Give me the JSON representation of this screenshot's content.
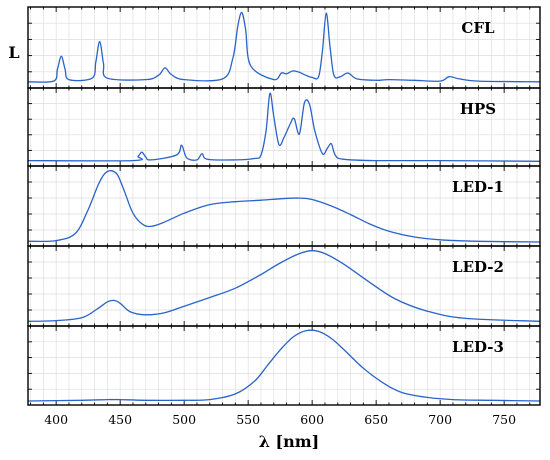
{
  "chart_data": {
    "type": "line",
    "xlabel": "λ [nm]",
    "ylabel": "L",
    "xlim": [
      378,
      778
    ],
    "ylim": [
      0,
      1
    ],
    "x_ticks": [
      400,
      450,
      500,
      550,
      600,
      650,
      700,
      750
    ],
    "grid": true,
    "panels": [
      {
        "name": "CFL",
        "series": [
          {
            "x": [
              378,
              398,
              401,
              404,
              407,
              410,
              428,
              431,
              434,
              437,
              440,
              470,
              480,
              485,
              490,
              500,
              530,
              538,
              542,
              545,
              548,
              552,
              570,
              576,
              580,
              585,
              590,
              595,
              600,
              605,
              608,
              611,
              614,
              617,
              622,
              628,
              635,
              650,
              660,
              680,
              700,
              707,
              715,
              730,
              778
            ],
            "y": [
              0.03,
              0.04,
              0.2,
              0.38,
              0.2,
              0.06,
              0.08,
              0.3,
              0.58,
              0.28,
              0.08,
              0.06,
              0.12,
              0.22,
              0.13,
              0.06,
              0.07,
              0.35,
              0.8,
              0.98,
              0.75,
              0.25,
              0.06,
              0.15,
              0.14,
              0.18,
              0.16,
              0.12,
              0.09,
              0.1,
              0.45,
              0.97,
              0.5,
              0.12,
              0.1,
              0.15,
              0.07,
              0.05,
              0.06,
              0.05,
              0.04,
              0.1,
              0.07,
              0.04,
              0.03
            ]
          }
        ]
      },
      {
        "name": "HPS",
        "series": [
          {
            "x": [
              378,
              460,
              464,
              467,
              470,
              474,
              494,
              498,
              502,
              510,
              514,
              518,
              540,
              555,
              560,
              564,
              567,
              570,
              574,
              578,
              583,
              586,
              590,
              594,
              598,
              602,
              608,
              612,
              615,
              618,
              624,
              650,
              700,
              778
            ],
            "y": [
              0.02,
              0.02,
              0.08,
              0.14,
              0.07,
              0.03,
              0.1,
              0.24,
              0.06,
              0.03,
              0.12,
              0.04,
              0.03,
              0.05,
              0.1,
              0.45,
              0.98,
              0.65,
              0.25,
              0.35,
              0.55,
              0.62,
              0.4,
              0.85,
              0.82,
              0.45,
              0.12,
              0.2,
              0.26,
              0.1,
              0.04,
              0.02,
              0.02,
              0.01
            ]
          }
        ]
      },
      {
        "name": "LED-1",
        "series": [
          {
            "x": [
              378,
              400,
              415,
              425,
              433,
              438,
              443,
              448,
              453,
              460,
              468,
              475,
              485,
              500,
              520,
              540,
              560,
              575,
              590,
              600,
              615,
              630,
              645,
              660,
              680,
              700,
              730,
              778
            ],
            "y": [
              0.01,
              0.02,
              0.12,
              0.45,
              0.8,
              0.95,
              0.99,
              0.93,
              0.72,
              0.4,
              0.24,
              0.22,
              0.28,
              0.4,
              0.52,
              0.56,
              0.58,
              0.6,
              0.61,
              0.59,
              0.5,
              0.38,
              0.25,
              0.15,
              0.07,
              0.03,
              0.01,
              0.0
            ]
          }
        ]
      },
      {
        "name": "LED-2",
        "series": [
          {
            "x": [
              378,
              400,
              420,
              432,
              440,
              445,
              450,
              458,
              470,
              485,
              500,
              520,
              540,
              560,
              575,
              590,
              600,
              610,
              625,
              645,
              665,
              690,
              720,
              778
            ],
            "y": [
              0.01,
              0.02,
              0.06,
              0.18,
              0.28,
              0.3,
              0.26,
              0.14,
              0.1,
              0.13,
              0.22,
              0.34,
              0.47,
              0.66,
              0.82,
              0.95,
              0.99,
              0.95,
              0.8,
              0.55,
              0.32,
              0.15,
              0.05,
              0.01
            ]
          }
        ]
      },
      {
        "name": "LED-3",
        "series": [
          {
            "x": [
              378,
              420,
              440,
              445,
              450,
              470,
              500,
              520,
              540,
              555,
              565,
              575,
              585,
              595,
              605,
              615,
              625,
              640,
              655,
              670,
              690,
              710,
              740,
              778
            ],
            "y": [
              0.0,
              0.01,
              0.02,
              0.02,
              0.02,
              0.01,
              0.01,
              0.02,
              0.1,
              0.28,
              0.5,
              0.72,
              0.9,
              0.99,
              0.98,
              0.88,
              0.72,
              0.46,
              0.26,
              0.12,
              0.05,
              0.02,
              0.01,
              0.0
            ]
          }
        ]
      }
    ]
  }
}
